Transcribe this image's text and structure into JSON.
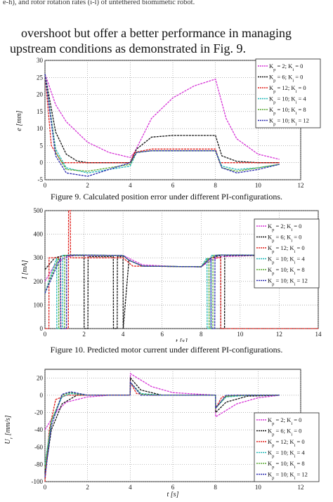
{
  "text": {
    "top_line": "e-h), and rotor rotation rates (i-l) of untethered biomimetic robot.",
    "body_line1": "overshoot but offer a better performance in managing",
    "body_line2": "upstream conditions as demonstrated in Fig. 9.",
    "caption9": "Figure 9.   Calculated position error under different PI-configurations.",
    "caption10": "Figure 10. Predicted motor current under different PI-configurations."
  },
  "legend_entries": [
    {
      "label": "K_p = 2; K_i = 0",
      "color": "#d633d6"
    },
    {
      "label": "K_p = 6; K_i = 0",
      "color": "#111111"
    },
    {
      "label": "K_p = 12; K_i = 0",
      "color": "#e0201c"
    },
    {
      "label": "K_p = 10; K_i = 4",
      "color": "#20b8b8"
    },
    {
      "label": "K_p = 10; K_i = 8",
      "color": "#58a832"
    },
    {
      "label": "K_p = 10; K_i = 12",
      "color": "#2a2ab0"
    }
  ],
  "chart_data": [
    {
      "type": "line",
      "xlabel": "t [s]",
      "ylabel": "e [mm]",
      "xlim": [
        0,
        12
      ],
      "ylim": [
        -5,
        30
      ],
      "xticks": [
        0,
        2,
        4,
        6,
        8,
        10,
        12
      ],
      "yticks": [
        -5,
        0,
        5,
        10,
        15,
        20,
        25,
        30
      ],
      "grid": true,
      "legend_position": "top-right",
      "series": [
        {
          "color": "#d633d6",
          "x": [
            0,
            0.5,
            1,
            2,
            3,
            4,
            4.2,
            5,
            6,
            7,
            8,
            8.5,
            9,
            10,
            11
          ],
          "y": [
            26,
            17,
            12,
            6,
            3,
            1.5,
            3,
            13,
            19,
            22.5,
            24.5,
            13,
            7,
            2.5,
            1
          ]
        },
        {
          "color": "#111111",
          "x": [
            0,
            0.5,
            1,
            1.5,
            2,
            4,
            4.3,
            5,
            6,
            8,
            8.3,
            9,
            10,
            11
          ],
          "y": [
            26,
            9,
            2.5,
            0.5,
            0,
            0,
            4,
            7.5,
            8,
            8,
            2,
            0.4,
            0,
            0
          ]
        },
        {
          "color": "#e0201c",
          "x": [
            0,
            0.3,
            0.8,
            1.5,
            4,
            4.2,
            5,
            8,
            8.2,
            9,
            11
          ],
          "y": [
            26,
            5,
            0,
            0,
            0,
            3,
            4,
            4,
            0,
            0,
            0
          ]
        },
        {
          "color": "#20b8b8",
          "x": [
            0,
            0.5,
            1,
            2,
            3,
            4,
            4.3,
            5,
            7,
            8,
            8.3,
            9,
            10,
            11
          ],
          "y": [
            26,
            4,
            -1.5,
            -3,
            -2,
            -1,
            3,
            3.5,
            3.5,
            3.5,
            -1,
            -2,
            -1.5,
            -0.5
          ]
        },
        {
          "color": "#58a832",
          "x": [
            0,
            0.5,
            1,
            2,
            3,
            4,
            4.3,
            5,
            7,
            8,
            8.3,
            9,
            10,
            11
          ],
          "y": [
            26,
            3,
            -2,
            -2.5,
            -1.5,
            -0.5,
            3,
            3.5,
            3.5,
            3.5,
            -1.5,
            -2.5,
            -1.5,
            -0.5
          ]
        },
        {
          "color": "#2a2ab0",
          "x": [
            0,
            0.5,
            1,
            2,
            3,
            4,
            4.3,
            5,
            7,
            8,
            8.3,
            9,
            10,
            11
          ],
          "y": [
            26,
            2,
            -3,
            -4,
            -2,
            0,
            3,
            3.5,
            3.5,
            3.5,
            -1.5,
            -3,
            -2,
            -0.5
          ]
        }
      ]
    },
    {
      "type": "line",
      "xlabel": "t [s]",
      "ylabel": "I [mA]",
      "xlim": [
        0,
        14
      ],
      "ylim": [
        0,
        500
      ],
      "xticks": [
        0,
        2,
        4,
        6,
        8,
        10,
        12,
        14
      ],
      "yticks": [
        0,
        100,
        200,
        300,
        400,
        500
      ],
      "grid": true,
      "legend_position": "top-right",
      "series": [
        {
          "color": "#d633d6",
          "x": [
            0,
            0.5,
            1,
            1.5,
            4,
            4.5,
            5,
            7,
            8,
            8.5,
            9,
            11,
            14
          ],
          "y": [
            200,
            270,
            300,
            310,
            310,
            290,
            270,
            262,
            262,
            290,
            305,
            310,
            310
          ]
        },
        {
          "color": "#111111",
          "x": [
            0,
            0.5,
            1,
            1.5,
            2,
            2.01,
            2.2,
            2.21,
            3.5,
            3.51,
            3.7,
            3.71,
            4,
            4.01,
            4.3,
            5,
            8,
            8.5,
            9,
            9.01,
            9.2,
            9.21,
            10,
            14
          ],
          "y": [
            250,
            300,
            310,
            310,
            310,
            0,
            0,
            305,
            305,
            0,
            0,
            305,
            305,
            0,
            290,
            265,
            262,
            300,
            310,
            0,
            0,
            310,
            310,
            310
          ]
        },
        {
          "color": "#e0201c",
          "x": [
            0,
            0.2,
            0.21,
            0.8,
            0.81,
            1.2,
            1.21,
            1.3,
            1.31,
            4,
            4.5,
            8,
            8.5,
            9,
            9.01,
            14
          ],
          "y": [
            0,
            0,
            300,
            300,
            0,
            0,
            500,
            500,
            300,
            300,
            265,
            262,
            300,
            300,
            0,
            0
          ]
        },
        {
          "color": "#20b8b8",
          "x": [
            0,
            0.6,
            0.61,
            0.9,
            0.91,
            1.5,
            4,
            4.3,
            5,
            8,
            8.3,
            8.31,
            8.5,
            8.51,
            9,
            14
          ],
          "y": [
            150,
            300,
            0,
            0,
            310,
            312,
            310,
            290,
            265,
            262,
            300,
            0,
            0,
            310,
            312,
            310
          ]
        },
        {
          "color": "#58a832",
          "x": [
            0,
            0.7,
            0.71,
            1.0,
            1.01,
            1.5,
            4,
            4.3,
            5,
            8,
            8.4,
            8.41,
            8.6,
            8.61,
            9,
            14
          ],
          "y": [
            150,
            300,
            0,
            0,
            310,
            312,
            310,
            290,
            265,
            262,
            300,
            0,
            0,
            310,
            312,
            310
          ]
        },
        {
          "color": "#2a2ab0",
          "x": [
            0,
            0.8,
            0.81,
            1.1,
            1.11,
            1.5,
            4,
            4.3,
            5,
            8,
            8.5,
            8.51,
            8.7,
            8.71,
            9,
            14
          ],
          "y": [
            150,
            300,
            0,
            0,
            310,
            312,
            310,
            290,
            265,
            262,
            300,
            0,
            0,
            310,
            312,
            310
          ]
        }
      ]
    },
    {
      "type": "line",
      "xlabel": "t [s]",
      "ylabel": "U_r [mm/s]",
      "xlim": [
        0,
        12
      ],
      "ylim": [
        -100,
        30
      ],
      "xticks": [
        0,
        2,
        4,
        6,
        8,
        10,
        12
      ],
      "yticks": [
        -100,
        -80,
        -60,
        -40,
        -20,
        0,
        20
      ],
      "grid": true,
      "legend_position": "bottom-right",
      "series": [
        {
          "color": "#d633d6",
          "x": [
            0,
            0.5,
            1,
            2,
            3,
            4,
            4.01,
            5,
            6,
            8,
            8.01,
            9,
            10,
            11
          ],
          "y": [
            -40,
            -20,
            -8,
            -2,
            0,
            0,
            25,
            10,
            3,
            0,
            -25,
            -10,
            -3,
            0
          ]
        },
        {
          "color": "#111111",
          "x": [
            0,
            0.3,
            0.8,
            1.5,
            4,
            4.01,
            4.5,
            5.5,
            8,
            8.01,
            8.5,
            9.5,
            11
          ],
          "y": [
            -90,
            -40,
            -10,
            0,
            0,
            20,
            6,
            0,
            0,
            -20,
            -8,
            -1,
            0
          ]
        },
        {
          "color": "#e0201c",
          "x": [
            0,
            0.2,
            0.5,
            1,
            4,
            4.01,
            4.3,
            5,
            8,
            8.01,
            8.3,
            9,
            11
          ],
          "y": [
            -100,
            -40,
            -5,
            0,
            0,
            15,
            2,
            0,
            0,
            -15,
            -2,
            0,
            0
          ]
        },
        {
          "color": "#20b8b8",
          "x": [
            0,
            0.3,
            0.8,
            1.2,
            2,
            4,
            4.01,
            4.5,
            5.5,
            8,
            8.01,
            8.5,
            9.5,
            11
          ],
          "y": [
            -80,
            -30,
            -2,
            2,
            0,
            0,
            15,
            2,
            0,
            0,
            -15,
            -2,
            0,
            0
          ]
        },
        {
          "color": "#58a832",
          "x": [
            0,
            0.3,
            0.8,
            1.2,
            2,
            4,
            4.01,
            4.5,
            5.5,
            8,
            8.01,
            8.5,
            9.5,
            11
          ],
          "y": [
            -85,
            -30,
            0,
            3,
            0,
            0,
            15,
            1,
            0,
            0,
            -15,
            -1,
            0,
            0
          ]
        },
        {
          "color": "#2a2ab0",
          "x": [
            0,
            0.3,
            0.8,
            1.2,
            2,
            4,
            4.01,
            4.5,
            5.5,
            8,
            8.01,
            8.5,
            9.5,
            11
          ],
          "y": [
            -95,
            -35,
            1,
            4,
            0,
            0,
            15,
            0,
            0,
            0,
            -15,
            0,
            0,
            0
          ]
        }
      ]
    }
  ]
}
